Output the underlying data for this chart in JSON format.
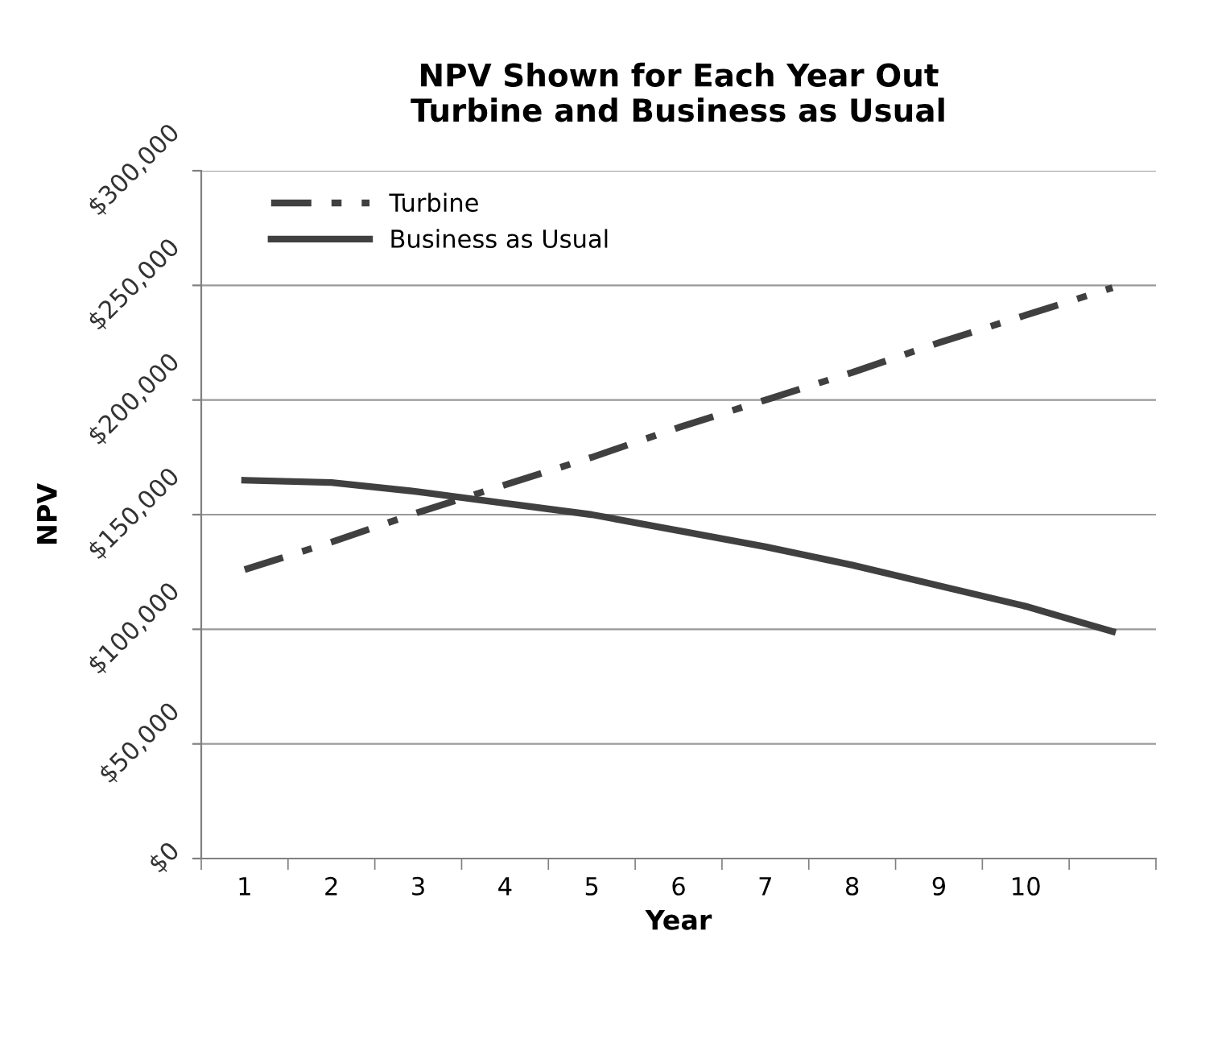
{
  "chart_data": {
    "type": "line",
    "title": "NPV Shown for Each Year Out\nTurbine and Business as Usual",
    "xlabel": "Year",
    "ylabel": "NPV",
    "categories": [
      "1",
      "2",
      "3",
      "4",
      "5",
      "6",
      "7",
      "8",
      "9",
      "10",
      null
    ],
    "series": [
      {
        "name": "Turbine",
        "color": "#404040",
        "line_style": "dashdot",
        "values": [
          126000,
          138000,
          151000,
          163000,
          175000,
          188000,
          200000,
          212000,
          225000,
          237000,
          249000
        ]
      },
      {
        "name": "Business as Usual",
        "color": "#404040",
        "line_style": "solid",
        "values": [
          165000,
          164000,
          160000,
          155000,
          150000,
          143000,
          136000,
          128000,
          119000,
          110000,
          99000
        ]
      }
    ],
    "ylim": [
      0,
      300000
    ],
    "yticks": [
      {
        "value": 0,
        "label": "$0"
      },
      {
        "value": 50000,
        "label": "$50,000"
      },
      {
        "value": 100000,
        "label": "$100,000"
      },
      {
        "value": 150000,
        "label": "$150,000"
      },
      {
        "value": 200000,
        "label": "$200,000"
      },
      {
        "value": 250000,
        "label": "$250,000"
      },
      {
        "value": 300000,
        "label": "$300,000"
      }
    ],
    "grid": "y",
    "legend": "top left",
    "marker": "none"
  }
}
